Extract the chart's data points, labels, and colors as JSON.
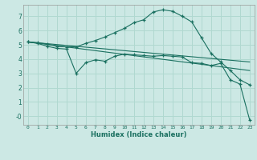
{
  "xlabel": "Humidex (Indice chaleur)",
  "bg_color": "#cce8e4",
  "grid_color": "#b0d8d0",
  "line_color": "#1a7060",
  "xlim": [
    -0.5,
    23.5
  ],
  "ylim": [
    -0.6,
    7.8
  ],
  "xticks": [
    0,
    1,
    2,
    3,
    4,
    5,
    6,
    7,
    8,
    9,
    10,
    11,
    12,
    13,
    14,
    15,
    16,
    17,
    18,
    19,
    20,
    21,
    22,
    23
  ],
  "yticks": [
    0,
    1,
    2,
    3,
    4,
    5,
    6,
    7
  ],
  "ytick_labels": [
    "-0",
    "1",
    "2",
    "3",
    "4",
    "5",
    "6",
    "7"
  ],
  "line1_x": [
    0,
    1,
    2,
    3,
    4,
    5,
    6,
    7,
    8,
    9,
    10,
    11,
    12,
    13,
    14,
    15,
    16,
    17,
    18,
    19,
    20,
    21,
    22,
    23
  ],
  "line1_y": [
    5.2,
    5.15,
    5.05,
    4.9,
    4.85,
    4.85,
    5.1,
    5.3,
    5.55,
    5.85,
    6.15,
    6.55,
    6.75,
    7.3,
    7.45,
    7.35,
    7.0,
    6.6,
    5.5,
    4.4,
    3.8,
    3.2,
    2.55,
    2.2
  ],
  "line2_x": [
    0,
    1,
    2,
    3,
    4,
    5,
    6,
    7,
    8,
    9,
    10,
    11,
    12,
    13,
    14,
    15,
    16,
    17,
    18,
    19,
    20,
    21,
    22,
    23
  ],
  "line2_y": [
    5.2,
    5.1,
    4.9,
    4.75,
    4.7,
    3.0,
    3.75,
    3.95,
    3.85,
    4.2,
    4.35,
    4.3,
    4.25,
    4.2,
    4.25,
    4.2,
    4.15,
    3.75,
    3.7,
    3.55,
    3.7,
    2.55,
    2.25,
    -0.25
  ],
  "line3_x": [
    0,
    23
  ],
  "line3_y": [
    5.2,
    3.8
  ],
  "line4_x": [
    0,
    23
  ],
  "line4_y": [
    5.2,
    3.2
  ]
}
